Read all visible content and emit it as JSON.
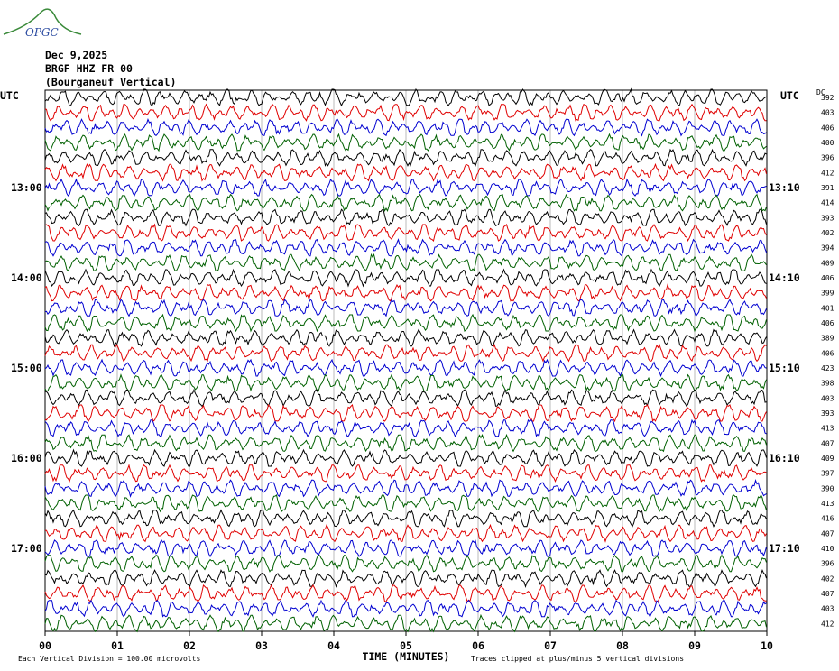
{
  "logo": "OPGC",
  "header": {
    "date": "Dec 9,2025",
    "station": "BRGF HHZ FR 00",
    "location": "(Bourganeuf Vertical)"
  },
  "left_labels": [
    "UTC",
    "13:00",
    "14:00",
    "15:00",
    "16:00",
    "17:00"
  ],
  "right_labels": [
    "UTC",
    "13:10",
    "14:10",
    "15:10",
    "16:10",
    "17:10"
  ],
  "dc_label": "DC",
  "dc_values": [
    392,
    403,
    406,
    400,
    396,
    412,
    391,
    414,
    393,
    402,
    394,
    409,
    406,
    399,
    401,
    406,
    389,
    406,
    423,
    398,
    403,
    393,
    413,
    407,
    409,
    397,
    390,
    413,
    416,
    407,
    410,
    396,
    402,
    407,
    403,
    412
  ],
  "trace_colors": [
    "#000000",
    "#e00000",
    "#0000d0",
    "#006000"
  ],
  "x_axis": {
    "ticks": [
      "00",
      "01",
      "02",
      "03",
      "04",
      "05",
      "06",
      "07",
      "08",
      "09",
      "10"
    ],
    "title": "TIME (MINUTES)"
  },
  "footer": {
    "scale": "Each Vertical Division =  100.00 microvolts",
    "clip": "Traces clipped at plus/minus 5 vertical divisions"
  }
}
